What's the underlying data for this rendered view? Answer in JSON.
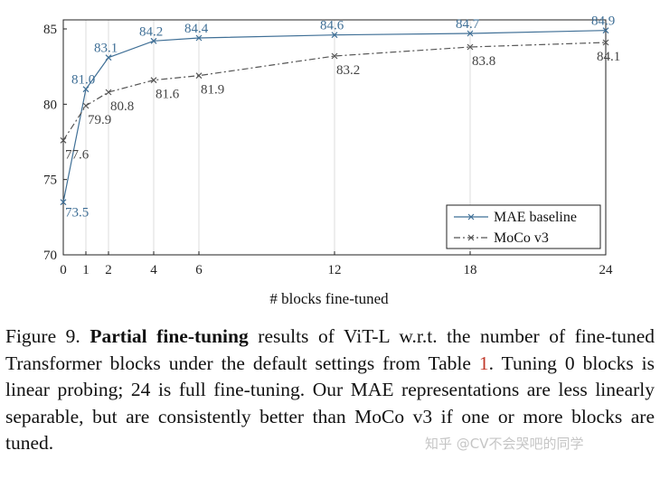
{
  "chart_data": {
    "type": "line",
    "xlabel": "# blocks fine-tuned",
    "ylabel": "",
    "x": [
      0,
      1,
      2,
      4,
      6,
      12,
      18,
      24
    ],
    "xticks": [
      0,
      1,
      2,
      4,
      6,
      12,
      18,
      24
    ],
    "yticks": [
      70,
      75,
      80,
      85
    ],
    "xlim": [
      0,
      24
    ],
    "ylim": [
      70,
      85.6
    ],
    "grid": "vertical",
    "legend_position": "bottom-right",
    "series": [
      {
        "name": "MAE baseline",
        "values": [
          73.5,
          81.0,
          83.1,
          84.2,
          84.4,
          84.6,
          84.7,
          84.9
        ],
        "labels": [
          "73.5",
          "81.0",
          "83.1",
          "84.2",
          "84.4",
          "84.6",
          "84.7",
          "84.9"
        ],
        "color": "#3f6f96",
        "style": "solid"
      },
      {
        "name": "MoCo v3",
        "values": [
          77.6,
          79.9,
          80.8,
          81.6,
          81.9,
          83.2,
          83.8,
          84.1
        ],
        "labels": [
          "77.6",
          "79.9",
          "80.8",
          "81.6",
          "81.9",
          "83.2",
          "83.8",
          "84.1"
        ],
        "color": "#555555",
        "style": "dashdot"
      }
    ]
  },
  "caption": {
    "prefix": "Figure 9.",
    "bold": "Partial fine-tuning",
    "text1": "results of ViT-L w.r.t. the number of fine-tuned Transformer blocks under the default settings from Table",
    "ref": "1",
    "text2": ". Tuning 0 blocks is linear probing; 24 is full fine-tuning. Our MAE representations are less linearly separable, but are consistently better than MoCo v3 if one or more blocks are tuned."
  },
  "watermark": "知乎 @CV不会哭吧的同学"
}
